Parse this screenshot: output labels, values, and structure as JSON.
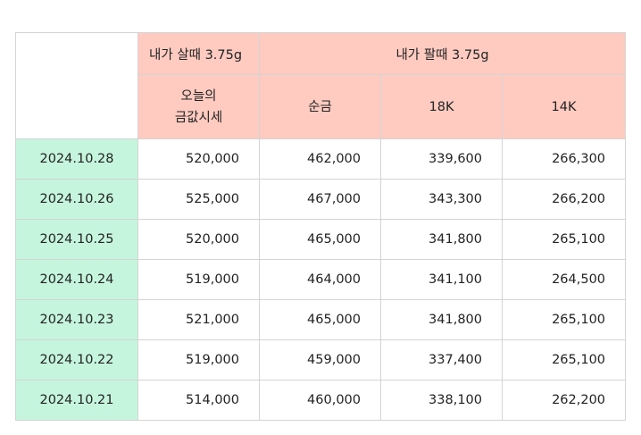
{
  "header": {
    "buy_group": "내가 살때 3.75g",
    "sell_group": "내가 팔때 3.75g",
    "todays_price_line1": "오늘의",
    "todays_price_line2": "금값시세",
    "pure_gold": "순금",
    "k18": "18K",
    "k14": "14K"
  },
  "rows": [
    {
      "date": "2024.10.28",
      "buy": "520,000",
      "pure": "462,000",
      "k18": "339,600",
      "k14": "266,300"
    },
    {
      "date": "2024.10.26",
      "buy": "525,000",
      "pure": "467,000",
      "k18": "343,300",
      "k14": "266,200"
    },
    {
      "date": "2024.10.25",
      "buy": "520,000",
      "pure": "465,000",
      "k18": "341,800",
      "k14": "265,100"
    },
    {
      "date": "2024.10.24",
      "buy": "519,000",
      "pure": "464,000",
      "k18": "341,100",
      "k14": "264,500"
    },
    {
      "date": "2024.10.23",
      "buy": "521,000",
      "pure": "465,000",
      "k18": "341,800",
      "k14": "265,100"
    },
    {
      "date": "2024.10.22",
      "buy": "519,000",
      "pure": "459,000",
      "k18": "337,400",
      "k14": "265,100"
    },
    {
      "date": "2024.10.21",
      "buy": "514,000",
      "pure": "460,000",
      "k18": "338,100",
      "k14": "262,200"
    }
  ]
}
